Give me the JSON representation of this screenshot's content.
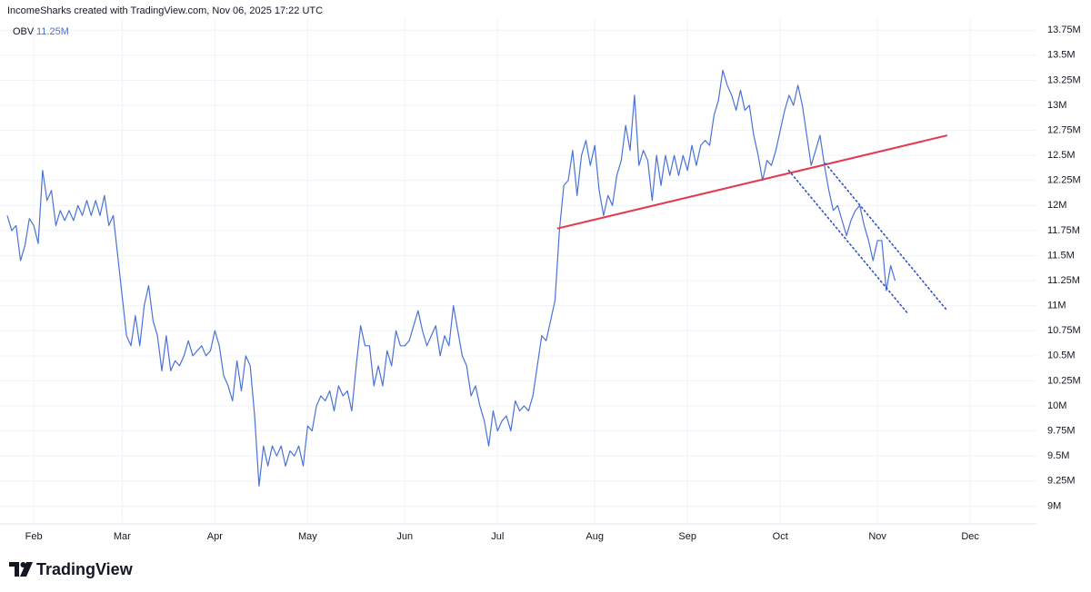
{
  "header": "IncomeSharks created with TradingView.com, Nov 06, 2025 17:22 UTC",
  "logo": "TradingView",
  "chart_data": {
    "type": "line",
    "legend_label": "OBV",
    "legend_value": "11.25M",
    "grid": true,
    "ylim": [
      8840000,
      13870000
    ],
    "xlim": [
      0,
      233
    ],
    "yticks": [
      {
        "value": 9000000,
        "label": "9M"
      },
      {
        "value": 9250000,
        "label": "9.25M"
      },
      {
        "value": 9500000,
        "label": "9.5M"
      },
      {
        "value": 9750000,
        "label": "9.75M"
      },
      {
        "value": 10000000,
        "label": "10M"
      },
      {
        "value": 10250000,
        "label": "10.25M"
      },
      {
        "value": 10500000,
        "label": "10.5M"
      },
      {
        "value": 10750000,
        "label": "10.75M"
      },
      {
        "value": 11000000,
        "label": "11M"
      },
      {
        "value": 11250000,
        "label": "11.25M"
      },
      {
        "value": 11500000,
        "label": "11.5M"
      },
      {
        "value": 11750000,
        "label": "11.75M"
      },
      {
        "value": 12000000,
        "label": "12M"
      },
      {
        "value": 12250000,
        "label": "12.25M"
      },
      {
        "value": 12500000,
        "label": "12.5M"
      },
      {
        "value": 12750000,
        "label": "12.75M"
      },
      {
        "value": 13000000,
        "label": "13M"
      },
      {
        "value": 13250000,
        "label": "13.25M"
      },
      {
        "value": 13500000,
        "label": "13.5M"
      },
      {
        "value": 13750000,
        "label": "13.75M"
      }
    ],
    "xticks": [
      {
        "value": 6,
        "label": "Feb"
      },
      {
        "value": 26,
        "label": "Mar"
      },
      {
        "value": 47,
        "label": "Apr"
      },
      {
        "value": 68,
        "label": "May"
      },
      {
        "value": 90,
        "label": "Jun"
      },
      {
        "value": 111,
        "label": "Jul"
      },
      {
        "value": 133,
        "label": "Aug"
      },
      {
        "value": 154,
        "label": "Sep"
      },
      {
        "value": 175,
        "label": "Oct"
      },
      {
        "value": 197,
        "label": "Nov"
      },
      {
        "value": 218,
        "label": "Dec"
      }
    ],
    "series": [
      {
        "name": "OBV",
        "color": "#4a72d8",
        "values": [
          11900000,
          11750000,
          11800000,
          11450000,
          11600000,
          11870000,
          11800000,
          11620000,
          12350000,
          12050000,
          12150000,
          11800000,
          11950000,
          11850000,
          11950000,
          11850000,
          12000000,
          11900000,
          12050000,
          11900000,
          12050000,
          11900000,
          12100000,
          11800000,
          11900000,
          11500000,
          11100000,
          10700000,
          10600000,
          10900000,
          10600000,
          11000000,
          11200000,
          10850000,
          10700000,
          10350000,
          10700000,
          10350000,
          10450000,
          10400000,
          10500000,
          10650000,
          10500000,
          10550000,
          10600000,
          10500000,
          10550000,
          10750000,
          10600000,
          10300000,
          10200000,
          10050000,
          10450000,
          10150000,
          10500000,
          10400000,
          9900000,
          9200000,
          9600000,
          9400000,
          9600000,
          9500000,
          9600000,
          9400000,
          9550000,
          9500000,
          9600000,
          9400000,
          9800000,
          9750000,
          10000000,
          10100000,
          10050000,
          10150000,
          9950000,
          10200000,
          10100000,
          10150000,
          9950000,
          10400000,
          10800000,
          10600000,
          10600000,
          10200000,
          10400000,
          10200000,
          10550000,
          10400000,
          10750000,
          10600000,
          10600000,
          10650000,
          10800000,
          10950000,
          10750000,
          10600000,
          10700000,
          10800000,
          10500000,
          10700000,
          10600000,
          11000000,
          10750000,
          10500000,
          10400000,
          10100000,
          10200000,
          10000000,
          9850000,
          9600000,
          9950000,
          9750000,
          9850000,
          9900000,
          9750000,
          10050000,
          9950000,
          10000000,
          9950000,
          10100000,
          10400000,
          10700000,
          10650000,
          10850000,
          11050000,
          11750000,
          12200000,
          12250000,
          12550000,
          12100000,
          12500000,
          12650000,
          12400000,
          12600000,
          12150000,
          11900000,
          12100000,
          12000000,
          12300000,
          12450000,
          12800000,
          12550000,
          13100000,
          12400000,
          12550000,
          12450000,
          12050000,
          12500000,
          12200000,
          12500000,
          12300000,
          12500000,
          12300000,
          12500000,
          12350000,
          12600000,
          12400000,
          12600000,
          12650000,
          12600000,
          12900000,
          13050000,
          13350000,
          13200000,
          13100000,
          12950000,
          13150000,
          12950000,
          13000000,
          12700000,
          12500000,
          12250000,
          12450000,
          12400000,
          12550000,
          12750000,
          12950000,
          13100000,
          13000000,
          13200000,
          13000000,
          12700000,
          12400000,
          12550000,
          12700000,
          12400000,
          12150000,
          11950000,
          12000000,
          11850000,
          11700000,
          11850000,
          11950000,
          12000000,
          11800000,
          11650000,
          11450000,
          11650000,
          11650000,
          11150000,
          11400000,
          11250000
        ]
      }
    ],
    "trendlines": [
      {
        "color": "#e53950",
        "style": "solid",
        "x": [
          124.5,
          212.8
        ],
        "y": [
          11770000,
          12700000
        ]
      },
      {
        "color": "#2f52c4",
        "style": "dotted",
        "x": [
          176.9,
          203.9
        ],
        "y": [
          12350000,
          10920000
        ]
      },
      {
        "color": "#2f52c4",
        "style": "dotted",
        "x": [
          185.2,
          212.8
        ],
        "y": [
          12420000,
          10950000
        ]
      }
    ]
  }
}
